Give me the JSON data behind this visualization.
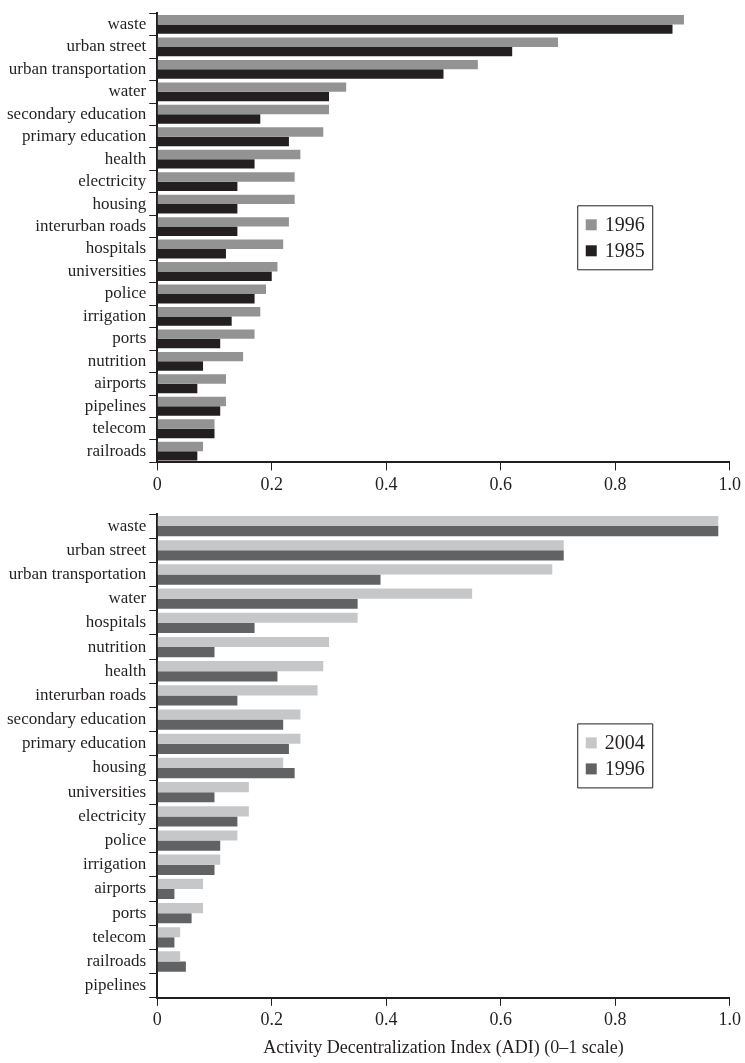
{
  "chart_data": [
    {
      "type": "bar",
      "orientation": "horizontal",
      "categories": [
        "waste",
        "urban street",
        "urban transportation",
        "water",
        "secondary education",
        "primary education",
        "health",
        "electricity",
        "housing",
        "interurban roads",
        "hospitals",
        "universities",
        "police",
        "irrigation",
        "ports",
        "nutrition",
        "airports",
        "pipelines",
        "telecom",
        "railroads"
      ],
      "series": [
        {
          "name": "1996",
          "color": "#939393",
          "values": [
            0.92,
            0.7,
            0.56,
            0.33,
            0.3,
            0.29,
            0.25,
            0.24,
            0.24,
            0.23,
            0.22,
            0.21,
            0.19,
            0.18,
            0.17,
            0.15,
            0.12,
            0.12,
            0.1,
            0.08
          ]
        },
        {
          "name": "1985",
          "color": "#231f20",
          "values": [
            0.9,
            0.62,
            0.5,
            0.3,
            0.18,
            0.23,
            0.17,
            0.14,
            0.14,
            0.14,
            0.12,
            0.2,
            0.17,
            0.13,
            0.11,
            0.08,
            0.07,
            0.11,
            0.1,
            0.07
          ]
        }
      ],
      "xlim": [
        0,
        1
      ],
      "xticks": [
        0,
        0.2,
        0.4,
        0.6,
        0.8,
        {
          "value": 1,
          "label": "1.0"
        }
      ],
      "grid": false,
      "legend": "right"
    },
    {
      "type": "bar",
      "orientation": "horizontal",
      "categories": [
        "waste",
        "urban street",
        "urban transportation",
        "water",
        "hospitals",
        "nutrition",
        "health",
        "interurban roads",
        "secondary education",
        "primary education",
        "housing",
        "universities",
        "electricity",
        "police",
        "irrigation",
        "airports",
        "ports",
        "telecom",
        "railroads",
        "pipelines"
      ],
      "series": [
        {
          "name": "2004",
          "color": "#c6c7c8",
          "values": [
            0.98,
            0.71,
            0.69,
            0.55,
            0.35,
            0.3,
            0.29,
            0.28,
            0.25,
            0.25,
            0.22,
            0.16,
            0.16,
            0.14,
            0.11,
            0.08,
            0.08,
            0.04,
            0.04,
            null
          ]
        },
        {
          "name": "1996",
          "color": "#616264",
          "values": [
            0.98,
            0.71,
            0.39,
            0.35,
            0.17,
            0.1,
            0.21,
            0.14,
            0.22,
            0.23,
            0.24,
            0.1,
            0.14,
            0.11,
            0.1,
            0.03,
            0.06,
            0.03,
            0.05,
            null
          ]
        }
      ],
      "xlim": [
        0,
        1
      ],
      "xticks": [
        0,
        0.2,
        0.4,
        0.6,
        0.8,
        {
          "value": 1,
          "label": "1.0"
        }
      ],
      "xlabel": "Activity Decentralization Index (ADI) (0–1 scale)",
      "grid": false,
      "legend": "right"
    }
  ]
}
